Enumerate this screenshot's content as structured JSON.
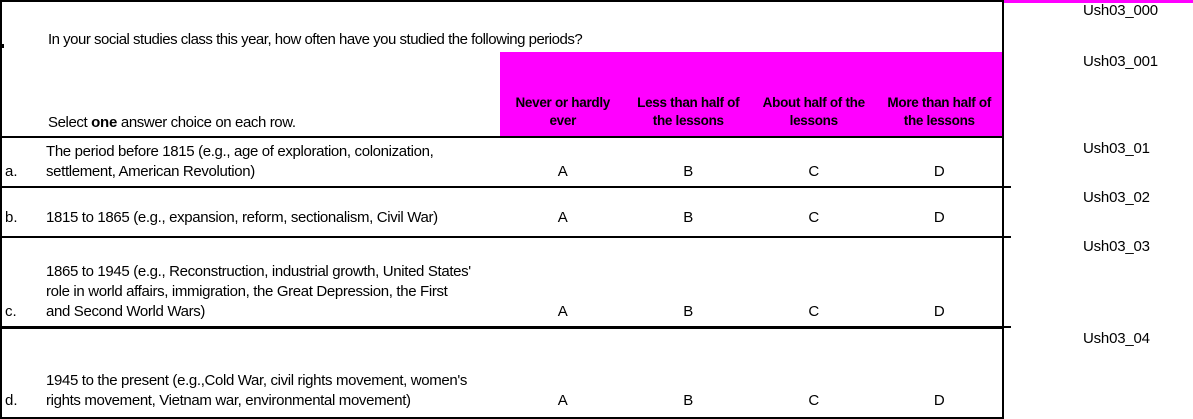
{
  "colors": {
    "highlight": "#ff00ff"
  },
  "question": {
    "prompt": "In your social studies class this year, how often have you studied the following periods?",
    "instruction_prefix": "Select ",
    "instruction_bold": "one",
    "instruction_suffix": " answer choice on each row."
  },
  "answer_columns": [
    {
      "line1": "Never or hardly",
      "line2": "ever"
    },
    {
      "line1": "Less than half of",
      "line2": "the lessons"
    },
    {
      "line1": "About half of the",
      "line2": "lessons"
    },
    {
      "line1": "More than half of",
      "line2": "the lessons"
    }
  ],
  "rows": [
    {
      "label": "a.",
      "lines": {
        "0": "The period before 1815 (e.g., age of exploration, colonization,",
        "1": "settlement, American Revolution)"
      },
      "choices": {
        "0": "A",
        "1": "B",
        "2": "C",
        "3": "D"
      }
    },
    {
      "label": "b.",
      "lines": {
        "0": "1815 to 1865 (e.g., expansion, reform, sectionalism, Civil War)"
      },
      "choices": {
        "0": "A",
        "1": "B",
        "2": "C",
        "3": "D"
      }
    },
    {
      "label": "c.",
      "lines": {
        "0": "1865 to 1945 (e.g., Reconstruction, industrial growth, United States'",
        "1": "role in world affairs, immigration, the Great Depression, the First",
        "2": "and Second World Wars)"
      },
      "choices": {
        "0": "A",
        "1": "B",
        "2": "C",
        "3": "D"
      }
    },
    {
      "label": "d.",
      "lines": {
        "0": "1945 to the present (e.g.,Cold War, civil rights movement, women's",
        "1": "rights movement, Vietnam war, environmental movement)"
      },
      "choices": {
        "0": "A",
        "1": "B",
        "2": "C",
        "3": "D"
      }
    }
  ],
  "variable_codes": {
    "0": "Ush03_000",
    "1": "Ush03_001",
    "2": "Ush03_01",
    "3": "Ush03_02",
    "4": "Ush03_03",
    "5": "Ush03_04"
  }
}
